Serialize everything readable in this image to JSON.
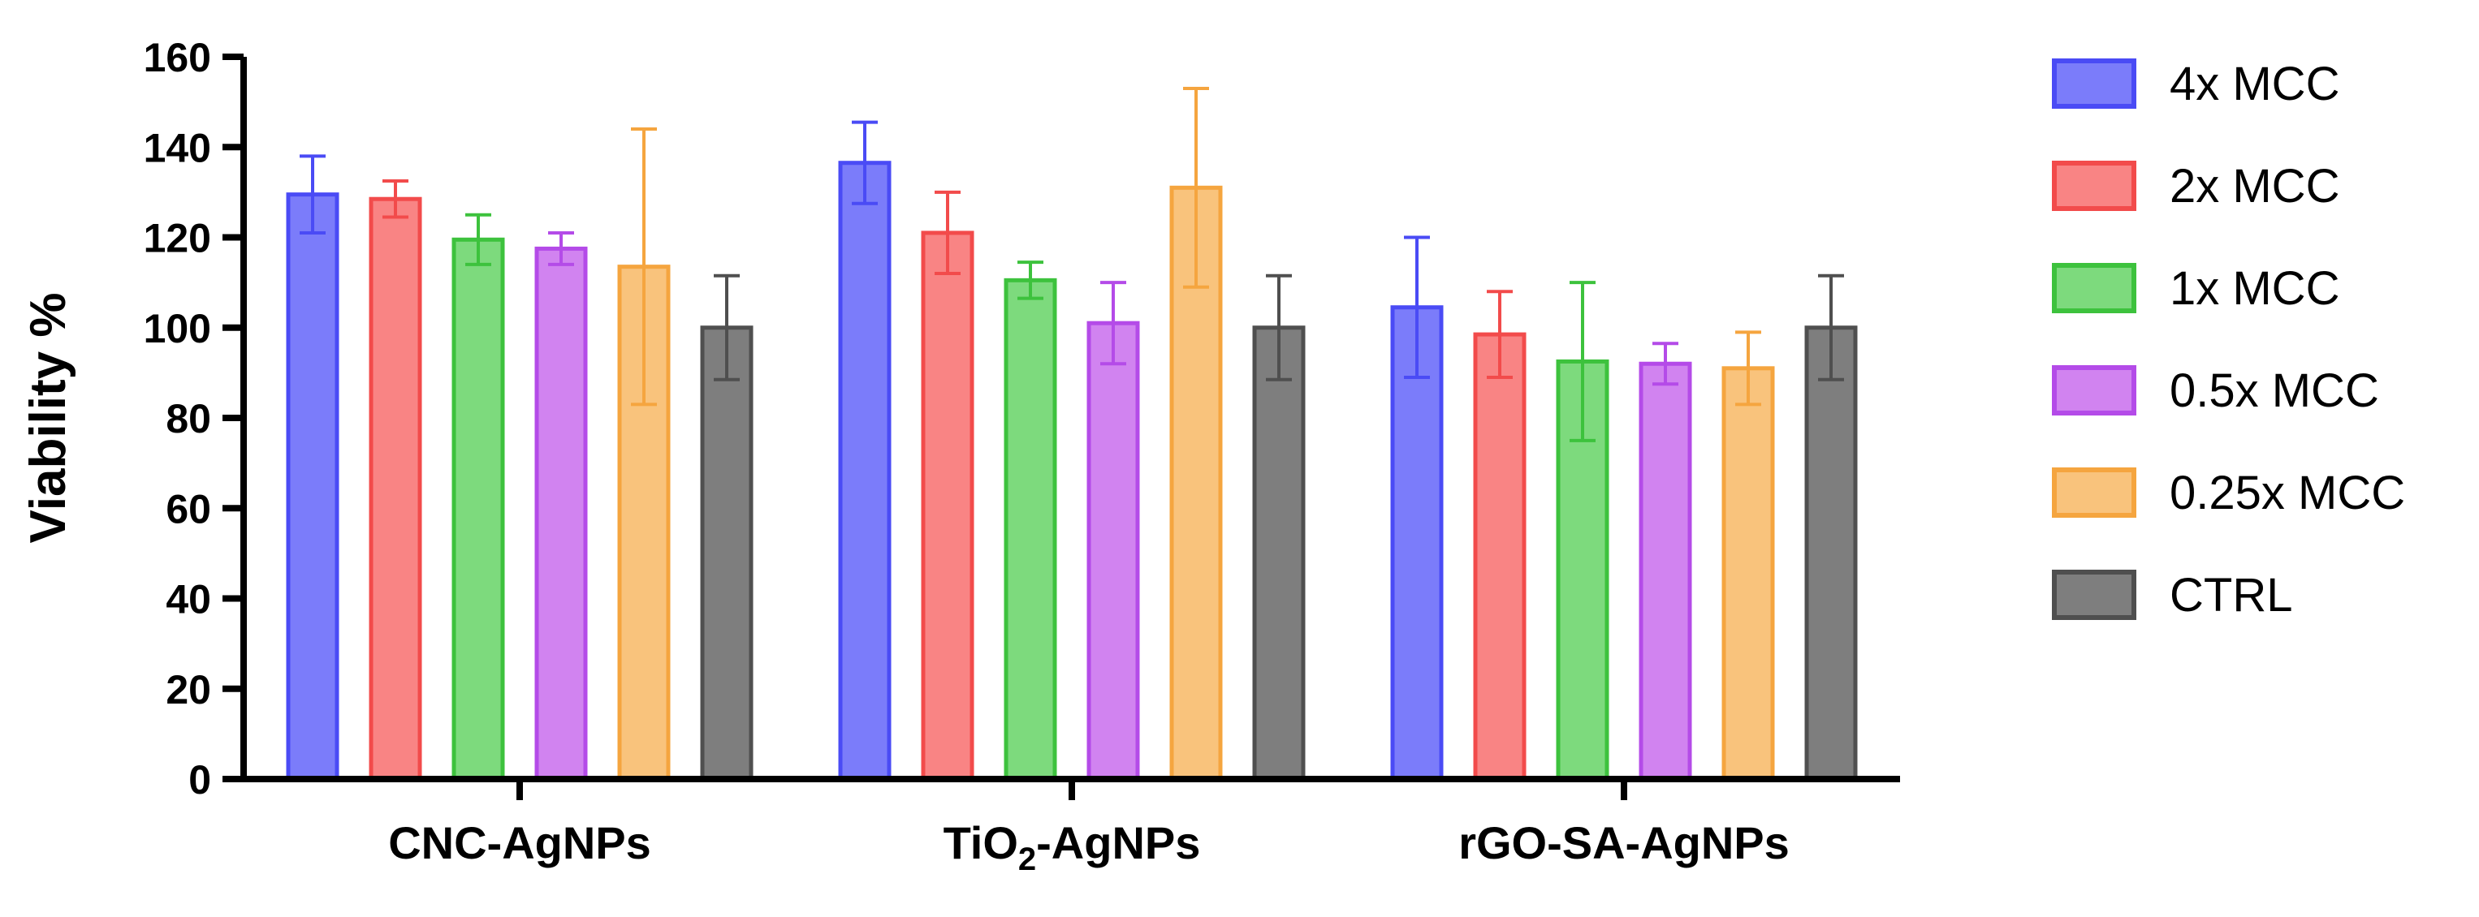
{
  "chart_data": {
    "type": "bar",
    "title": "",
    "xlabel": "",
    "ylabel": "Viability %",
    "ylim": [
      0,
      160
    ],
    "yticks": [
      0,
      20,
      40,
      60,
      80,
      100,
      120,
      140,
      160
    ],
    "categories": [
      {
        "label": "CNC-AgNPs",
        "parts": [
          "CNC-AgNPs"
        ]
      },
      {
        "label": "TiO2-AgNPs",
        "parts": [
          "TiO",
          "2",
          "-AgNPs"
        ]
      },
      {
        "label": "rGO-SA-AgNPs",
        "parts": [
          "rGO-SA-AgNPs"
        ]
      }
    ],
    "series": [
      {
        "name": "4x MCC",
        "color": "#4A4BF5",
        "fill": "#7B7CFA",
        "values": [
          129.5,
          136.5,
          104.5
        ],
        "errors": [
          8.5,
          9.0,
          15.5
        ]
      },
      {
        "name": "2x MCC",
        "color": "#F24B4B",
        "fill": "#F98484",
        "values": [
          128.5,
          121.0,
          98.5
        ],
        "errors": [
          4.0,
          9.0,
          9.5
        ]
      },
      {
        "name": "1x MCC",
        "color": "#3DC23D",
        "fill": "#7DDA7D",
        "values": [
          119.5,
          110.5,
          92.5
        ],
        "errors": [
          5.5,
          4.0,
          17.5
        ]
      },
      {
        "name": "0.5x MCC",
        "color": "#B44BE8",
        "fill": "#D183F0",
        "values": [
          117.5,
          101.0,
          92.0
        ],
        "errors": [
          3.5,
          9.0,
          4.5
        ]
      },
      {
        "name": "0.25x MCC",
        "color": "#F5A53F",
        "fill": "#F9C37C",
        "values": [
          113.5,
          131.0,
          91.0
        ],
        "errors": [
          30.5,
          22.0,
          8.0
        ]
      },
      {
        "name": "CTRL",
        "color": "#4F4F4F",
        "fill": "#7E7E7E",
        "values": [
          100.0,
          100.0,
          100.0
        ],
        "errors": [
          11.5,
          11.5,
          11.5
        ]
      }
    ],
    "legend_position": "right",
    "grid": false
  }
}
